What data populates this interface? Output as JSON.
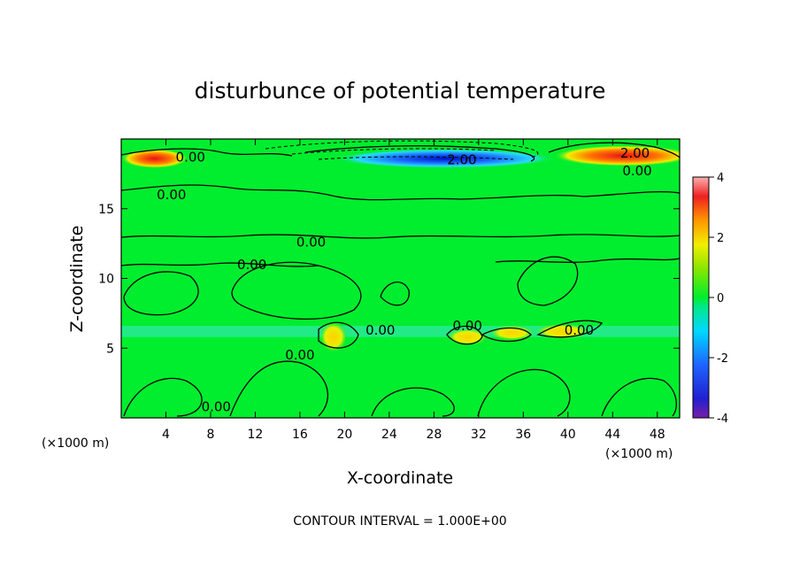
{
  "chart_data": {
    "type": "heatmap",
    "title": "disturbunce of potential temperature",
    "xlabel": "X-coordinate",
    "ylabel": "Z-coordinate",
    "x_unit_left": "(×1000 m)",
    "x_unit_right": "(×1000 m)",
    "footer": "CONTOUR INTERVAL = 1.000E+00",
    "xlim": [
      0,
      50
    ],
    "ylim": [
      0,
      20
    ],
    "x_ticks": [
      4,
      8,
      12,
      16,
      20,
      24,
      28,
      32,
      36,
      40,
      44,
      48
    ],
    "y_ticks": [
      5,
      10,
      15
    ],
    "colorbar": {
      "ticks": [
        4,
        2,
        0,
        -2,
        -4
      ],
      "range": [
        -4,
        4
      ]
    },
    "contour_labels": [
      {
        "text": "0.00",
        "x": 6.2,
        "y": 18.7
      },
      {
        "text": "2.00",
        "x": 30.5,
        "y": 18.5
      },
      {
        "text": "2.00",
        "x": 46.0,
        "y": 19.0
      },
      {
        "text": "0.00",
        "x": 46.2,
        "y": 17.7
      },
      {
        "text": "0.00",
        "x": 4.5,
        "y": 16.0
      },
      {
        "text": "0.00",
        "x": 17.0,
        "y": 12.6
      },
      {
        "text": "0.00",
        "x": 11.7,
        "y": 11.0
      },
      {
        "text": "0.00",
        "x": 16.0,
        "y": 4.5
      },
      {
        "text": "0.00",
        "x": 23.2,
        "y": 6.3
      },
      {
        "text": "0.00",
        "x": 31.0,
        "y": 6.6
      },
      {
        "text": "0.00",
        "x": 41.0,
        "y": 6.3
      },
      {
        "text": "0.00",
        "x": 8.5,
        "y": 0.8
      }
    ],
    "features": [
      {
        "value": 3.5,
        "x": 3.0,
        "y": 18.6,
        "note": "positive maximum upper-left"
      },
      {
        "value": -3.0,
        "x": 29.0,
        "y": 18.6,
        "note": "negative minimum upper-center"
      },
      {
        "value": 3.5,
        "x": 45.0,
        "y": 18.8,
        "note": "positive maximum upper-right"
      },
      {
        "value": 1.5,
        "x": 19.0,
        "y": 5.8,
        "note": "positive blob"
      },
      {
        "value": 1.8,
        "x": 31.0,
        "y": 5.8,
        "note": "positive blob"
      },
      {
        "value": 1.5,
        "x": 35.0,
        "y": 6.1,
        "note": "positive blob"
      },
      {
        "value": 1.2,
        "x": 39.5,
        "y": 6.2,
        "note": "positive blob"
      },
      {
        "value": -0.5,
        "x": 25.0,
        "y": 6.0,
        "note": "cool band at z≈6"
      }
    ]
  }
}
